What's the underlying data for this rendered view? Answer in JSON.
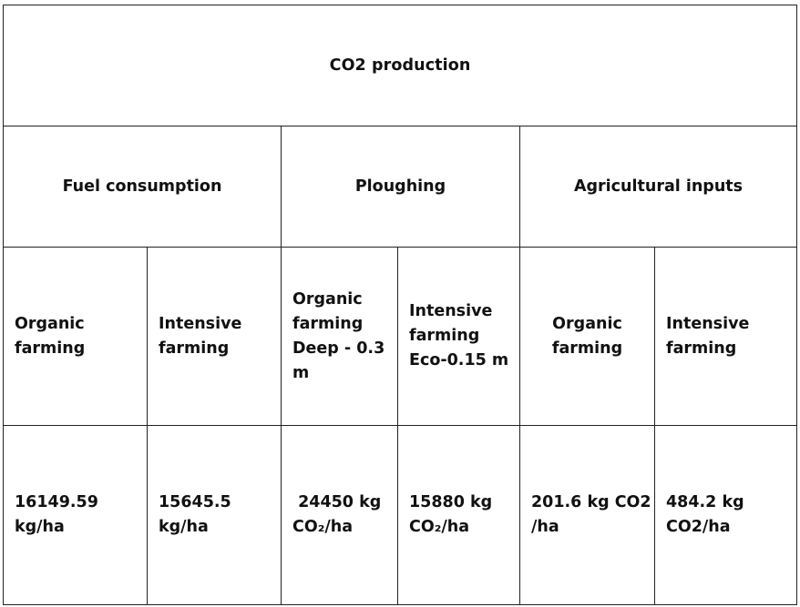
{
  "table": {
    "title": "CO2 production",
    "groups": [
      "Fuel consumption",
      "Ploughing",
      "Agricultural inputs"
    ],
    "subheaders": [
      [
        "Organic",
        "farming"
      ],
      [
        "Intensive",
        "farming"
      ],
      [
        "Organic",
        "farming",
        "Deep - 0.3",
        "m"
      ],
      [
        "Intensive",
        "farming",
        "Eco-0.15 m"
      ],
      [
        "Organic",
        "farming"
      ],
      [
        "Intensive",
        "farming"
      ]
    ],
    "values": [
      [
        "16149.59",
        "kg/ha"
      ],
      [
        "15645.5",
        "kg/ha"
      ],
      [
        " 24450 kg",
        "CO₂/ha"
      ],
      [
        "15880 kg",
        "CO₂/ha"
      ],
      [
        "201.6 kg CO2",
        "/ha"
      ],
      [
        "484.2 kg",
        "CO2/ha"
      ]
    ]
  }
}
